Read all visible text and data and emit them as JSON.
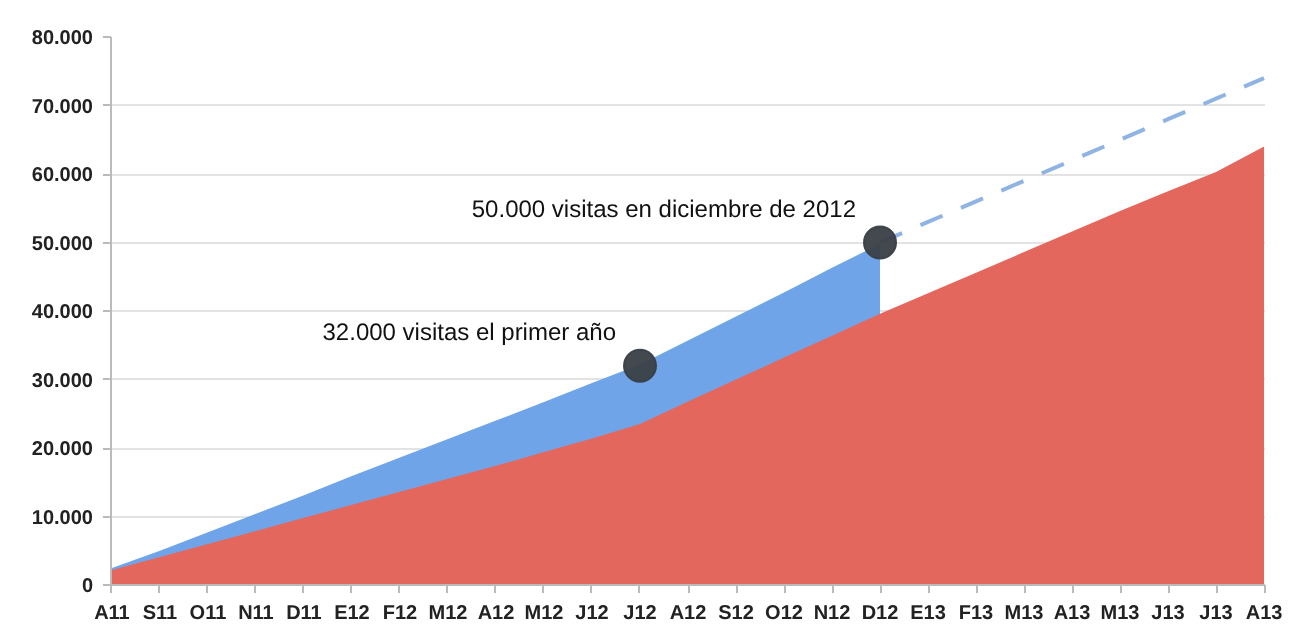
{
  "chart_data": {
    "type": "area",
    "categories": [
      "A11",
      "S11",
      "O11",
      "N11",
      "D11",
      "E12",
      "F12",
      "M12",
      "A12",
      "M12",
      "J12",
      "J12",
      "A12",
      "S12",
      "O12",
      "N12",
      "D12",
      "E13",
      "F13",
      "M13",
      "A13",
      "M13",
      "J13",
      "J13",
      "A13"
    ],
    "series": [
      {
        "color": "#6fa5e8",
        "values": [
          2500,
          5000,
          7700,
          10400,
          13100,
          15900,
          18600,
          21300,
          24000,
          26700,
          29500,
          32200,
          35700,
          39200,
          42700,
          46300,
          49800,
          null,
          null,
          null,
          null,
          null,
          null,
          null,
          null
        ]
      },
      {
        "color": "#e4675d",
        "values": [
          2200,
          4100,
          6000,
          7900,
          9800,
          11700,
          13600,
          15500,
          17400,
          19400,
          21400,
          23500,
          26800,
          30000,
          33200,
          36400,
          39600,
          42600,
          45600,
          48600,
          51600,
          54600,
          57500,
          60300,
          64000
        ]
      },
      {
        "type": "line",
        "color": "#8fb4e3",
        "line_style": "dashed",
        "marker": "none",
        "values": [
          null,
          null,
          null,
          null,
          null,
          null,
          null,
          null,
          null,
          null,
          null,
          null,
          null,
          null,
          null,
          null,
          50000,
          53000,
          56000,
          59000,
          62000,
          65000,
          68000,
          71000,
          74000
        ]
      },
      {
        "type": "scatter",
        "color": "#3a3f47",
        "marker": "circle",
        "values": [
          null,
          null,
          null,
          null,
          null,
          null,
          null,
          null,
          null,
          null,
          null,
          32000,
          null,
          null,
          null,
          null,
          50000,
          null,
          null,
          null,
          null,
          null,
          null,
          null,
          null
        ],
        "value_labels": [
          null,
          null,
          null,
          null,
          null,
          null,
          null,
          null,
          null,
          null,
          null,
          "32.000 visitas el primer año",
          null,
          null,
          null,
          null,
          "50.000 visitas en diciembre de 2012",
          null,
          null,
          null,
          null,
          null,
          null,
          null,
          null
        ]
      }
    ],
    "ylim": [
      0,
      80000
    ],
    "yticks": [
      {
        "value": 0,
        "label": "0"
      },
      {
        "value": 10000,
        "label": "10.000"
      },
      {
        "value": 20000,
        "label": "20.000"
      },
      {
        "value": 30000,
        "label": "30.000"
      },
      {
        "value": 40000,
        "label": "40.000"
      },
      {
        "value": 50000,
        "label": "50.000"
      },
      {
        "value": 60000,
        "label": "60.000"
      },
      {
        "value": 70000,
        "label": "70.000"
      },
      {
        "value": 80000,
        "label": "80.000"
      }
    ],
    "grid": "y"
  }
}
